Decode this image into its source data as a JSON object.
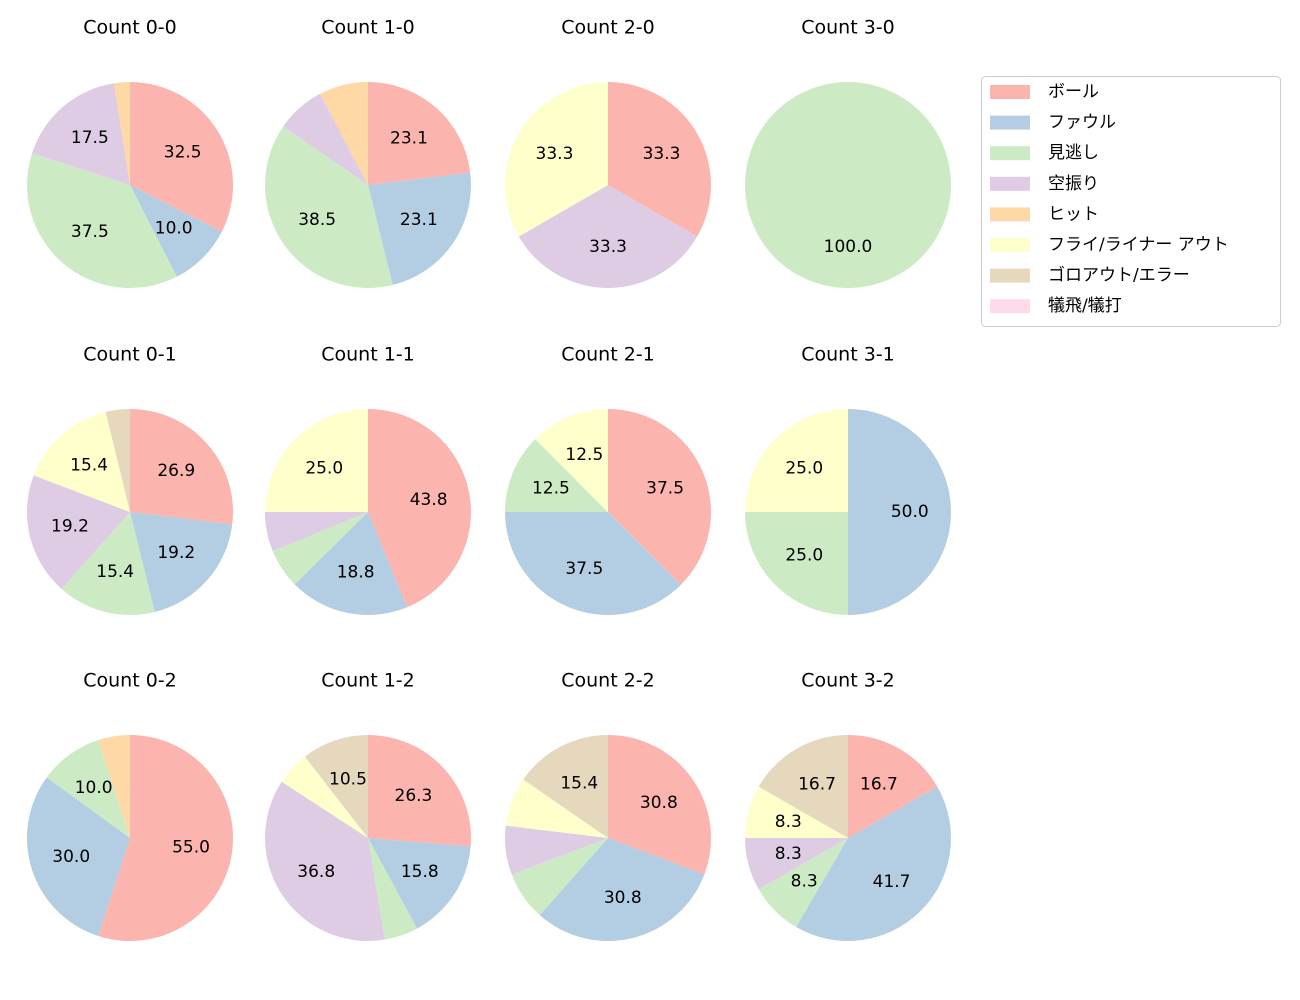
{
  "legend": {
    "labels": [
      "ボール",
      "ファウル",
      "見逃し",
      "空振り",
      "ヒット",
      "フライ/ライナー アウト",
      "ゴロアウト/エラー",
      "犠飛/犠打"
    ],
    "colors": [
      "#fbb4ae",
      "#b3cde3",
      "#ccebc5",
      "#decbe4",
      "#fed9a6",
      "#ffffcc",
      "#e5d8bd",
      "#fddaec"
    ]
  },
  "chart_data": [
    {
      "type": "pie",
      "title": "Count 0-0",
      "categories": [
        "ボール",
        "ファウル",
        "見逃し",
        "空振り",
        "ヒット"
      ],
      "values": [
        32.5,
        10.0,
        37.5,
        17.5,
        2.5
      ],
      "value_labels": [
        "32.5",
        "10.0",
        "37.5",
        "17.5",
        null
      ]
    },
    {
      "type": "pie",
      "title": "Count 1-0",
      "categories": [
        "ボール",
        "ファウル",
        "見逃し",
        "空振り",
        "ヒット"
      ],
      "values": [
        23.1,
        23.1,
        38.5,
        7.7,
        7.7
      ],
      "value_labels": [
        "23.1",
        "23.1",
        "38.5",
        null,
        null
      ]
    },
    {
      "type": "pie",
      "title": "Count 2-0",
      "categories": [
        "ボール",
        "空振り",
        "フライ/ライナー アウト"
      ],
      "values": [
        33.3,
        33.3,
        33.3
      ],
      "value_labels": [
        "33.3",
        "33.3",
        "33.3"
      ]
    },
    {
      "type": "pie",
      "title": "Count 3-0",
      "categories": [
        "見逃し"
      ],
      "values": [
        100
      ],
      "value_labels": [
        "100.0"
      ]
    },
    {
      "type": "pie",
      "title": "Count 0-1",
      "categories": [
        "ボール",
        "ファウル",
        "見逃し",
        "空振り",
        "フライ/ライナー アウト",
        "ゴロアウト/エラー"
      ],
      "values": [
        26.9,
        19.2,
        15.4,
        19.2,
        15.4,
        3.8
      ],
      "value_labels": [
        "26.9",
        "19.2",
        "15.4",
        "19.2",
        "15.4",
        null
      ]
    },
    {
      "type": "pie",
      "title": "Count 1-1",
      "categories": [
        "ボール",
        "ファウル",
        "見逃し",
        "空振り",
        "フライ/ライナー アウト"
      ],
      "values": [
        43.8,
        18.8,
        6.2,
        6.2,
        25.0
      ],
      "value_labels": [
        "43.8",
        "18.8",
        null,
        null,
        "25.0"
      ]
    },
    {
      "type": "pie",
      "title": "Count 2-1",
      "categories": [
        "ボール",
        "ファウル",
        "見逃し",
        "フライ/ライナー アウト"
      ],
      "values": [
        37.5,
        37.5,
        12.5,
        12.5
      ],
      "value_labels": [
        "37.5",
        "37.5",
        "12.5",
        "12.5"
      ]
    },
    {
      "type": "pie",
      "title": "Count 3-1",
      "categories": [
        "ファウル",
        "見逃し",
        "フライ/ライナー アウト"
      ],
      "values": [
        50.0,
        25.0,
        25.0
      ],
      "value_labels": [
        "50.0",
        "25.0",
        "25.0"
      ]
    },
    {
      "type": "pie",
      "title": "Count 0-2",
      "categories": [
        "ボール",
        "ファウル",
        "見逃し",
        "ヒット"
      ],
      "values": [
        55.0,
        30.0,
        10.0,
        5.0
      ],
      "value_labels": [
        "55.0",
        "30.0",
        "10.0",
        null
      ]
    },
    {
      "type": "pie",
      "title": "Count 1-2",
      "categories": [
        "ボール",
        "ファウル",
        "見逃し",
        "空振り",
        "フライ/ライナー アウト",
        "ゴロアウト/エラー"
      ],
      "values": [
        26.3,
        15.8,
        5.3,
        36.8,
        5.3,
        10.5
      ],
      "value_labels": [
        "26.3",
        "15.8",
        null,
        "36.8",
        null,
        "10.5"
      ]
    },
    {
      "type": "pie",
      "title": "Count 2-2",
      "categories": [
        "ボール",
        "ファウル",
        "見逃し",
        "空振り",
        "フライ/ライナー アウト",
        "ゴロアウト/エラー"
      ],
      "values": [
        30.8,
        30.8,
        7.7,
        7.7,
        7.7,
        15.4
      ],
      "value_labels": [
        "30.8",
        "30.8",
        null,
        null,
        null,
        "15.4"
      ]
    },
    {
      "type": "pie",
      "title": "Count 3-2",
      "categories": [
        "ボール",
        "ファウル",
        "見逃し",
        "空振り",
        "フライ/ライナー アウト",
        "ゴロアウト/エラー"
      ],
      "values": [
        16.7,
        41.7,
        8.3,
        8.3,
        8.3,
        16.7
      ],
      "value_labels": [
        "16.7",
        "41.7",
        "8.3",
        "8.3",
        "8.3",
        "16.7"
      ]
    }
  ]
}
